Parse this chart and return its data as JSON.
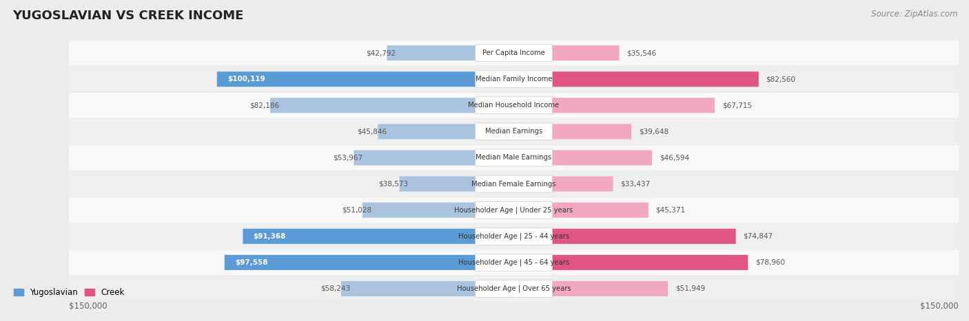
{
  "title": "YUGOSLAVIAN VS CREEK INCOME",
  "source": "Source: ZipAtlas.com",
  "categories": [
    "Per Capita Income",
    "Median Family Income",
    "Median Household Income",
    "Median Earnings",
    "Median Male Earnings",
    "Median Female Earnings",
    "Householder Age | Under 25 years",
    "Householder Age | 25 - 44 years",
    "Householder Age | 45 - 64 years",
    "Householder Age | Over 65 years"
  ],
  "yugoslavian_values": [
    42792,
    100119,
    82186,
    45846,
    53967,
    38573,
    51028,
    91368,
    97558,
    58243
  ],
  "creek_values": [
    35546,
    82560,
    67715,
    39648,
    46594,
    33437,
    45371,
    74847,
    78960,
    51949
  ],
  "max_value": 150000,
  "yug_color_light": "#aac4e0",
  "yug_color_dark": "#5b9bd5",
  "creek_color_light": "#f2a8bf",
  "creek_color_dark": "#e05585",
  "bg_color": "#ececec",
  "row_colors": [
    "#f8f8f8",
    "#efefef"
  ],
  "highlight_rows": [
    1,
    7,
    8
  ],
  "label_pill_color": "#f0f0f0",
  "label_pill_edge": "#cccccc",
  "value_color_inside": "#ffffff",
  "value_color_outside": "#555555",
  "title_color": "#222222",
  "source_color": "#888888",
  "axis_label_color": "#666666",
  "legend_yug": "#5b9bd5",
  "legend_creek": "#e05585"
}
